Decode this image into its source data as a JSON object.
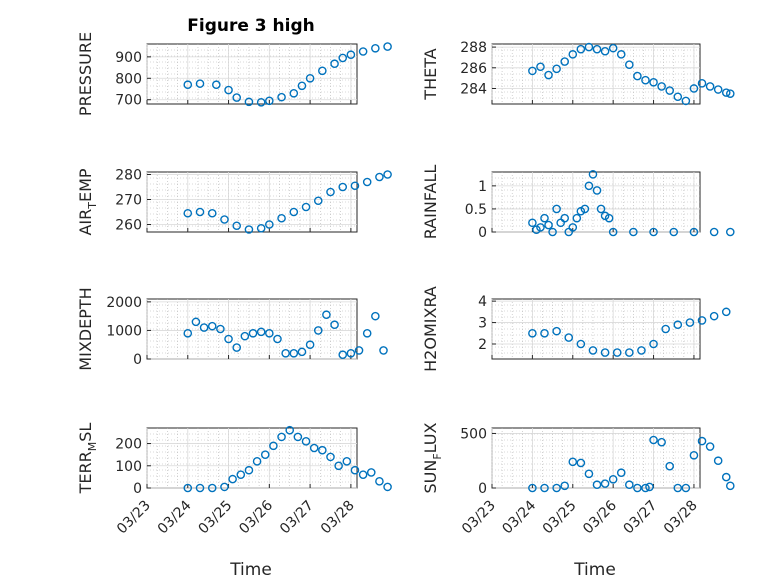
{
  "figure": {
    "title": "Figure 3 high",
    "accent": "#0072BD"
  },
  "chart_data": [
    {
      "type": "scatter",
      "panel": "PRESSURE",
      "ylabel_main": "PRESSURE",
      "ylabel_sub": "",
      "ylabel_tail": "",
      "ylim": [
        680,
        960
      ],
      "yticks": [
        700,
        800,
        900
      ],
      "ytick_labels": [
        "700",
        "800",
        "900"
      ],
      "x": [
        0.0,
        0.3,
        0.7,
        1.0,
        1.2,
        1.5,
        1.8,
        2.0,
        2.3,
        2.6,
        2.8,
        3.0,
        3.3,
        3.6,
        3.8,
        4.0,
        4.3,
        4.6,
        4.9
      ],
      "y": [
        770,
        775,
        770,
        745,
        710,
        690,
        688,
        695,
        712,
        730,
        765,
        800,
        835,
        868,
        895,
        910,
        925,
        940,
        948
      ]
    },
    {
      "type": "scatter",
      "panel": "THETA",
      "ylabel_main": "THETA",
      "ylabel_sub": "",
      "ylabel_tail": "",
      "ylim": [
        282.5,
        288.3
      ],
      "yticks": [
        284,
        286,
        288
      ],
      "ytick_labels": [
        "284",
        "286",
        "288"
      ],
      "x": [
        0.0,
        0.2,
        0.4,
        0.6,
        0.8,
        1.0,
        1.2,
        1.4,
        1.6,
        1.8,
        2.0,
        2.2,
        2.4,
        2.6,
        2.8,
        3.0,
        3.2,
        3.4,
        3.6,
        3.8,
        4.0,
        4.2,
        4.4,
        4.6,
        4.8,
        4.9
      ],
      "y": [
        285.7,
        286.1,
        285.3,
        285.9,
        286.6,
        287.3,
        287.8,
        288.0,
        287.8,
        287.6,
        287.9,
        287.3,
        286.3,
        285.2,
        284.8,
        284.6,
        284.2,
        283.8,
        283.2,
        282.8,
        284.0,
        284.5,
        284.2,
        283.9,
        283.6,
        283.5
      ]
    },
    {
      "type": "scatter",
      "panel": "AIR_TEMP",
      "ylabel_main": "AIR",
      "ylabel_sub": "T",
      "ylabel_tail": "EMP",
      "ylim": [
        257,
        281
      ],
      "yticks": [
        260,
        270,
        280
      ],
      "ytick_labels": [
        "260",
        "270",
        "280"
      ],
      "x": [
        0.0,
        0.3,
        0.6,
        0.9,
        1.2,
        1.5,
        1.8,
        2.0,
        2.3,
        2.6,
        2.9,
        3.2,
        3.5,
        3.8,
        4.1,
        4.4,
        4.7,
        4.9
      ],
      "y": [
        264.5,
        265.0,
        264.5,
        262.0,
        259.5,
        258.0,
        258.5,
        260.0,
        262.5,
        265.0,
        267.0,
        269.5,
        273.0,
        275.0,
        275.5,
        277.0,
        279.0,
        280.0
      ]
    },
    {
      "type": "scatter",
      "panel": "RAINFALL",
      "ylabel_main": "RAINFALL",
      "ylabel_sub": "",
      "ylabel_tail": "",
      "ylim": [
        0,
        1.3
      ],
      "yticks": [
        0,
        0.5,
        1
      ],
      "ytick_labels": [
        "0",
        "0.5",
        "1"
      ],
      "x": [
        0.0,
        0.1,
        0.2,
        0.3,
        0.4,
        0.5,
        0.6,
        0.7,
        0.8,
        0.9,
        1.0,
        1.1,
        1.2,
        1.3,
        1.4,
        1.5,
        1.6,
        1.7,
        1.8,
        1.9,
        2.0,
        2.5,
        3.0,
        3.5,
        4.0,
        4.5,
        4.9
      ],
      "y": [
        0.2,
        0.05,
        0.1,
        0.3,
        0.15,
        0.0,
        0.5,
        0.2,
        0.3,
        0.0,
        0.1,
        0.3,
        0.45,
        0.5,
        1.0,
        1.25,
        0.9,
        0.5,
        0.35,
        0.3,
        0.0,
        0.0,
        0.0,
        0.0,
        0.0,
        0.0,
        0.0
      ]
    },
    {
      "type": "scatter",
      "panel": "MIXDEPTH",
      "ylabel_main": "MIXDEPTH",
      "ylabel_sub": "",
      "ylabel_tail": "",
      "ylim": [
        0,
        2100
      ],
      "yticks": [
        0,
        1000,
        2000
      ],
      "ytick_labels": [
        "0",
        "1000",
        "2000"
      ],
      "x": [
        0.0,
        0.2,
        0.4,
        0.6,
        0.8,
        1.0,
        1.2,
        1.4,
        1.6,
        1.8,
        2.0,
        2.2,
        2.4,
        2.6,
        2.8,
        3.0,
        3.2,
        3.4,
        3.6,
        3.8,
        4.0,
        4.2,
        4.4,
        4.6,
        4.8
      ],
      "y": [
        900,
        1300,
        1100,
        1150,
        1050,
        700,
        400,
        800,
        900,
        950,
        900,
        700,
        200,
        200,
        250,
        500,
        1000,
        1550,
        1200,
        150,
        200,
        300,
        900,
        1500,
        300
      ]
    },
    {
      "type": "scatter",
      "panel": "H2OMIXRA",
      "ylabel_main": "H2OMIXRA",
      "ylabel_sub": "",
      "ylabel_tail": "",
      "ylim": [
        1.3,
        4.1
      ],
      "yticks": [
        2,
        3,
        4
      ],
      "ytick_labels": [
        "2",
        "3",
        "4"
      ],
      "x": [
        0.0,
        0.3,
        0.6,
        0.9,
        1.2,
        1.5,
        1.8,
        2.1,
        2.4,
        2.7,
        3.0,
        3.3,
        3.6,
        3.9,
        4.2,
        4.5,
        4.8
      ],
      "y": [
        2.5,
        2.5,
        2.6,
        2.3,
        2.0,
        1.7,
        1.6,
        1.6,
        1.6,
        1.7,
        2.0,
        2.7,
        2.9,
        3.0,
        3.1,
        3.3,
        3.5
      ]
    },
    {
      "type": "scatter",
      "panel": "TERR_MSL",
      "ylabel_main": "TERR",
      "ylabel_sub": "M",
      "ylabel_tail": "SL",
      "ylim": [
        0,
        270
      ],
      "yticks": [
        0,
        100,
        200
      ],
      "ytick_labels": [
        "0",
        "100",
        "200"
      ],
      "x": [
        0.0,
        0.3,
        0.6,
        0.9,
        1.1,
        1.3,
        1.5,
        1.7,
        1.9,
        2.1,
        2.3,
        2.5,
        2.7,
        2.9,
        3.1,
        3.3,
        3.5,
        3.7,
        3.9,
        4.1,
        4.3,
        4.5,
        4.7,
        4.9
      ],
      "y": [
        0,
        0,
        0,
        5,
        40,
        60,
        80,
        120,
        150,
        190,
        230,
        260,
        230,
        210,
        180,
        170,
        140,
        100,
        120,
        80,
        60,
        70,
        30,
        5
      ]
    },
    {
      "type": "scatter",
      "panel": "SUN_FLUX",
      "ylabel_main": "SUN",
      "ylabel_sub": "F",
      "ylabel_tail": "LUX",
      "ylim": [
        0,
        550
      ],
      "yticks": [
        0,
        500
      ],
      "ytick_labels": [
        "0",
        "500"
      ],
      "x": [
        0.0,
        0.3,
        0.6,
        0.8,
        1.0,
        1.2,
        1.4,
        1.6,
        1.8,
        2.0,
        2.2,
        2.4,
        2.6,
        2.8,
        2.9,
        3.0,
        3.2,
        3.4,
        3.6,
        3.8,
        4.0,
        4.2,
        4.4,
        4.6,
        4.8,
        4.9
      ],
      "y": [
        0,
        0,
        0,
        20,
        240,
        230,
        130,
        30,
        40,
        80,
        140,
        30,
        0,
        0,
        10,
        440,
        420,
        200,
        0,
        0,
        300,
        430,
        380,
        250,
        100,
        20
      ]
    }
  ],
  "x_axis": {
    "label": "Time",
    "tick_labels": [
      "03/23",
      "03/24",
      "03/25",
      "03/26",
      "03/27",
      "03/28"
    ],
    "tick_values": [
      -1,
      0,
      1,
      2,
      3,
      4
    ]
  }
}
